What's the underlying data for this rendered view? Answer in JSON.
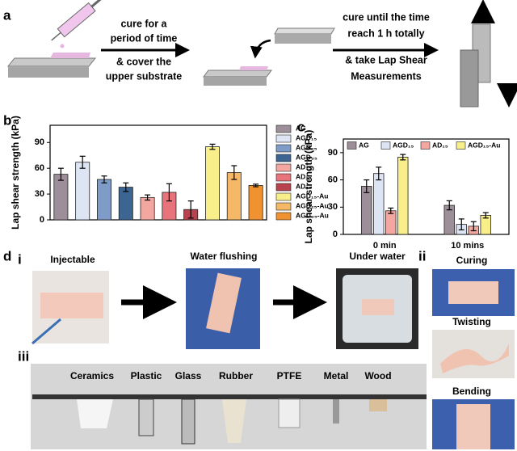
{
  "panel_a": {
    "letter": "a",
    "step1": [
      "cure for a",
      "period of time",
      "& cover the",
      "upper substrate"
    ],
    "step2": [
      "cure until the time",
      "reach 1 h totally",
      "& take Lap Shear",
      "Measurements"
    ]
  },
  "chart_data": [
    {
      "type": "bar",
      "letter": "b",
      "y_label": "Lap shear strength (kPa)",
      "legend": "right",
      "categories": [
        "AG",
        "AGD₁₅",
        "AGD₂₅",
        "AGD₃₅",
        "AD₁₅",
        "AD₂₅",
        "AD₃₅",
        "AGD₁₅-Au",
        "AGD₂₅-Au",
        "AGD₃₅-Au"
      ],
      "values": [
        53,
        67,
        47,
        38,
        26,
        32,
        12,
        85,
        55,
        40
      ],
      "errors": [
        7,
        7,
        4,
        5,
        3,
        10,
        10,
        3,
        8,
        1.5
      ],
      "colors": [
        "#9d8f9a",
        "#dde4f3",
        "#7f9bc8",
        "#3d6592",
        "#f4a6a0",
        "#e8737a",
        "#b8424e",
        "#f8ee8a",
        "#f5b866",
        "#f0922f"
      ],
      "ylim": [
        0,
        110
      ],
      "yticks": [
        0,
        30,
        60,
        90
      ]
    },
    {
      "type": "grouped_bar",
      "letter": "c",
      "y_label": "Lap shear strength (kPa)",
      "legend": "top",
      "categories": [
        "0 min",
        "10 mins"
      ],
      "series": [
        {
          "name": "AG",
          "color": "#9d8f9a",
          "values": [
            53,
            32
          ],
          "errors": [
            7,
            5
          ]
        },
        {
          "name": "AGD₁₅",
          "color": "#dde4f3",
          "values": [
            67,
            11
          ],
          "errors": [
            7,
            6
          ]
        },
        {
          "name": "AD₁₅",
          "color": "#f4a6a0",
          "values": [
            26,
            9
          ],
          "errors": [
            3,
            5
          ]
        },
        {
          "name": "AGD₁₅-Au",
          "color": "#f8ee8a",
          "values": [
            85,
            21
          ],
          "errors": [
            3,
            3
          ]
        }
      ],
      "ylim": [
        0,
        105
      ],
      "yticks": [
        0,
        30,
        60,
        90
      ]
    }
  ],
  "panel_d": {
    "letter": "d",
    "part_i": {
      "letter": "i",
      "labels": [
        "Injectable",
        "Water flushing",
        "Under water"
      ]
    },
    "part_ii": {
      "letter": "ii",
      "labels": [
        "Curing",
        "Twisting",
        "Bending"
      ]
    },
    "part_iii": {
      "letter": "iii",
      "labels": [
        "Ceramics",
        "Plastic",
        "Glass",
        "Rubber",
        "PTFE",
        "Metal",
        "Wood"
      ]
    }
  }
}
